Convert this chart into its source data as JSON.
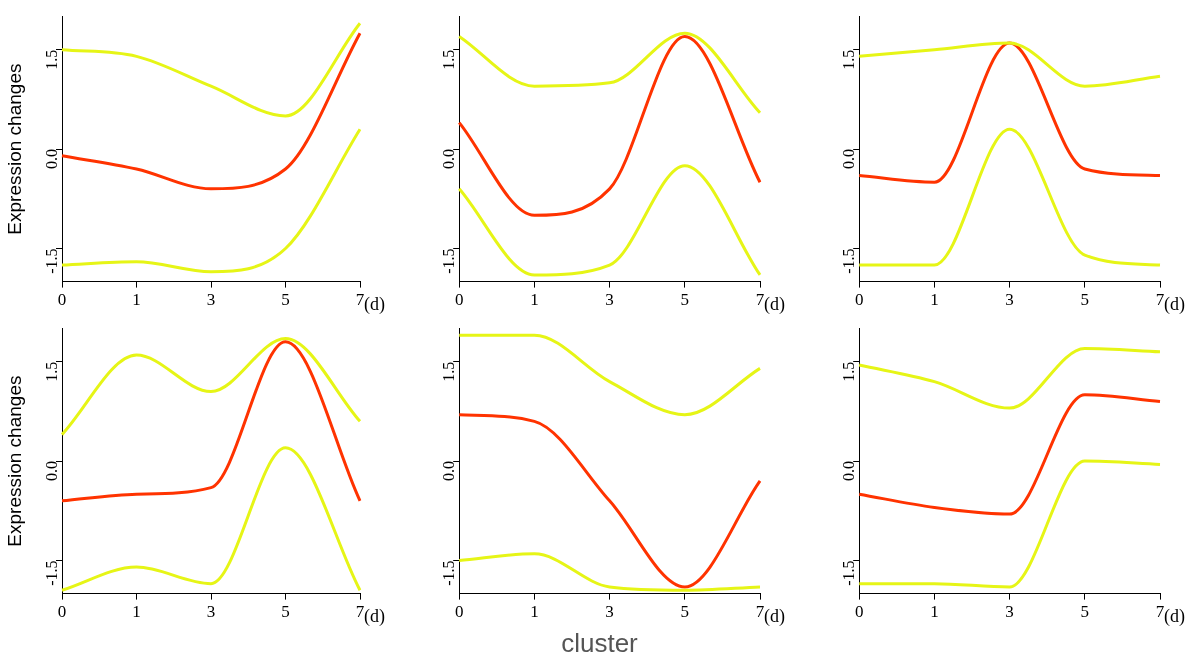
{
  "chart_data": [
    {
      "type": "line",
      "ylabel": "Expression changes",
      "xlabel": "(d)",
      "categories": [
        "0",
        "1",
        "3",
        "5",
        "7"
      ],
      "ylim": [
        -2,
        2
      ],
      "yticks": [
        {
          "value": -1.5,
          "label": "-1.5"
        },
        {
          "value": 0,
          "label": "0.0"
        },
        {
          "value": 1.5,
          "label": "1.5"
        }
      ],
      "marker": "none",
      "series": [
        {
          "color": "#e6f516",
          "values": [
            1.5,
            1.4,
            0.95,
            0.5,
            1.9
          ]
        },
        {
          "color": "#e6f516",
          "values": [
            -1.75,
            -1.7,
            -1.85,
            -1.5,
            0.3
          ]
        },
        {
          "color": "#ff3300",
          "values": [
            -0.1,
            -0.3,
            -0.6,
            -0.3,
            1.75
          ]
        }
      ]
    },
    {
      "type": "line",
      "xlabel": "(d)",
      "categories": [
        "0",
        "1",
        "3",
        "5",
        "7"
      ],
      "ylim": [
        -2,
        2
      ],
      "yticks": [
        {
          "value": -1.5,
          "label": "-1.5"
        },
        {
          "value": 0,
          "label": "0.0"
        },
        {
          "value": 1.5,
          "label": "1.5"
        }
      ],
      "marker": "none",
      "series": [
        {
          "color": "#e6f516",
          "values": [
            1.7,
            0.95,
            1.0,
            1.75,
            0.55
          ]
        },
        {
          "color": "#e6f516",
          "values": [
            -0.6,
            -1.9,
            -1.75,
            -0.25,
            -1.9
          ]
        },
        {
          "color": "#ff3300",
          "values": [
            0.4,
            -1.0,
            -0.6,
            1.7,
            -0.5
          ]
        }
      ]
    },
    {
      "type": "line",
      "xlabel": "(d)",
      "categories": [
        "0",
        "1",
        "3",
        "5",
        "7"
      ],
      "ylim": [
        -2,
        2
      ],
      "yticks": [
        {
          "value": -1.5,
          "label": "-1.5"
        },
        {
          "value": 0,
          "label": "0.0"
        },
        {
          "value": 1.5,
          "label": "1.5"
        }
      ],
      "marker": "none",
      "series": [
        {
          "color": "#e6f516",
          "values": [
            1.4,
            1.5,
            1.6,
            0.95,
            1.1
          ]
        },
        {
          "color": "#e6f516",
          "values": [
            -1.75,
            -1.75,
            0.3,
            -1.6,
            -1.75
          ]
        },
        {
          "color": "#ff3300",
          "values": [
            -0.4,
            -0.5,
            1.6,
            -0.3,
            -0.4
          ]
        }
      ]
    },
    {
      "type": "line",
      "ylabel": "Expression changes",
      "xlabel": "(d)",
      "categories": [
        "0",
        "1",
        "3",
        "5",
        "7"
      ],
      "ylim": [
        -2,
        2
      ],
      "yticks": [
        {
          "value": -1.5,
          "label": "-1.5"
        },
        {
          "value": 0,
          "label": "0.0"
        },
        {
          "value": 1.5,
          "label": "1.5"
        }
      ],
      "marker": "none",
      "series": [
        {
          "color": "#e6f516",
          "values": [
            0.4,
            1.6,
            1.05,
            1.85,
            0.6
          ]
        },
        {
          "color": "#e6f516",
          "values": [
            -1.95,
            -1.6,
            -1.85,
            0.2,
            -1.95
          ]
        },
        {
          "color": "#ff3300",
          "values": [
            -0.6,
            -0.5,
            -0.4,
            1.8,
            -0.6
          ]
        }
      ]
    },
    {
      "type": "line",
      "xlabel": "(d)",
      "annotations": [
        "cluster"
      ],
      "categories": [
        "0",
        "1",
        "3",
        "5",
        "7"
      ],
      "ylim": [
        -2,
        2
      ],
      "yticks": [
        {
          "value": -1.5,
          "label": "-1.5"
        },
        {
          "value": 0,
          "label": "0.0"
        },
        {
          "value": 1.5,
          "label": "1.5"
        }
      ],
      "marker": "none",
      "series": [
        {
          "color": "#e6f516",
          "values": [
            1.9,
            1.9,
            1.2,
            0.7,
            1.4
          ]
        },
        {
          "color": "#e6f516",
          "values": [
            -1.5,
            -1.4,
            -1.9,
            -1.95,
            -1.9
          ]
        },
        {
          "color": "#ff3300",
          "values": [
            0.7,
            0.6,
            -0.6,
            -1.9,
            -0.3
          ]
        }
      ]
    },
    {
      "type": "line",
      "xlabel": "(d)",
      "categories": [
        "0",
        "1",
        "3",
        "5",
        "7"
      ],
      "ylim": [
        -2,
        2
      ],
      "yticks": [
        {
          "value": -1.5,
          "label": "-1.5"
        },
        {
          "value": 0,
          "label": "0.0"
        },
        {
          "value": 1.5,
          "label": "1.5"
        }
      ],
      "marker": "none",
      "series": [
        {
          "color": "#e6f516",
          "values": [
            1.45,
            1.2,
            0.8,
            1.7,
            1.65
          ]
        },
        {
          "color": "#e6f516",
          "values": [
            -1.85,
            -1.85,
            -1.9,
            0.0,
            -0.05
          ]
        },
        {
          "color": "#ff3300",
          "values": [
            -0.5,
            -0.7,
            -0.8,
            1.0,
            0.9
          ]
        }
      ]
    }
  ]
}
